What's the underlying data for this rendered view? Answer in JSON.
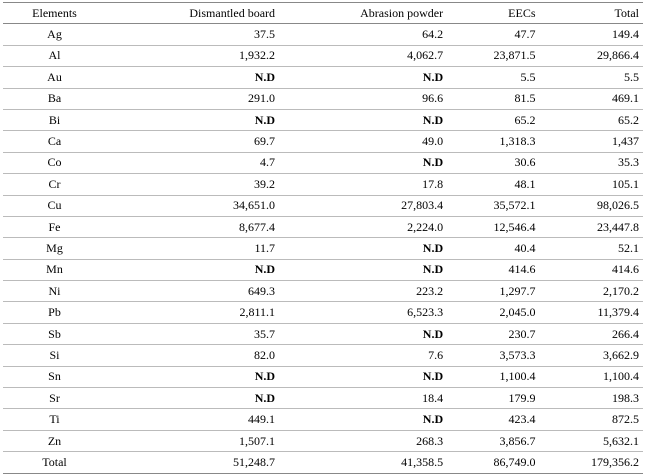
{
  "table": {
    "columns": [
      "Elements",
      "Dismantled board",
      "Abrasion powder",
      "EECs",
      "Total"
    ],
    "rows": [
      [
        "Ag",
        "37.5",
        "64.2",
        "47.7",
        "149.4"
      ],
      [
        "Al",
        "1,932.2",
        "4,062.7",
        "23,871.5",
        "29,866.4"
      ],
      [
        "Au",
        "N.D",
        "N.D",
        "5.5",
        "5.5"
      ],
      [
        "Ba",
        "291.0",
        "96.6",
        "81.5",
        "469.1"
      ],
      [
        "Bi",
        "N.D",
        "N.D",
        "65.2",
        "65.2"
      ],
      [
        "Ca",
        "69.7",
        "49.0",
        "1,318.3",
        "1,437"
      ],
      [
        "Co",
        "4.7",
        "N.D",
        "30.6",
        "35.3"
      ],
      [
        "Cr",
        "39.2",
        "17.8",
        "48.1",
        "105.1"
      ],
      [
        "Cu",
        "34,651.0",
        "27,803.4",
        "35,572.1",
        "98,026.5"
      ],
      [
        "Fe",
        "8,677.4",
        "2,224.0",
        "12,546.4",
        "23,447.8"
      ],
      [
        "Mg",
        "11.7",
        "N.D",
        "40.4",
        "52.1"
      ],
      [
        "Mn",
        "N.D",
        "N.D",
        "414.6",
        "414.6"
      ],
      [
        "Ni",
        "649.3",
        "223.2",
        "1,297.7",
        "2,170.2"
      ],
      [
        "Pb",
        "2,811.1",
        "6,523.3",
        "2,045.0",
        "11,379.4"
      ],
      [
        "Sb",
        "35.7",
        "N.D",
        "230.7",
        "266.4"
      ],
      [
        "Si",
        "82.0",
        "7.6",
        "3,573.3",
        "3,662.9"
      ],
      [
        "Sn",
        "N.D",
        "N.D",
        "1,100.4",
        "1,100.4"
      ],
      [
        "Sr",
        "N.D",
        "18.4",
        "179.9",
        "198.3"
      ],
      [
        "Ti",
        "449.1",
        "N.D",
        "423.4",
        "872.5"
      ],
      [
        "Zn",
        "1,507.1",
        "268.3",
        "3,856.7",
        "5,632.1"
      ],
      [
        "Total",
        "51,248.7",
        "41,358.5",
        "86,749.0",
        "179,356.2"
      ]
    ]
  }
}
